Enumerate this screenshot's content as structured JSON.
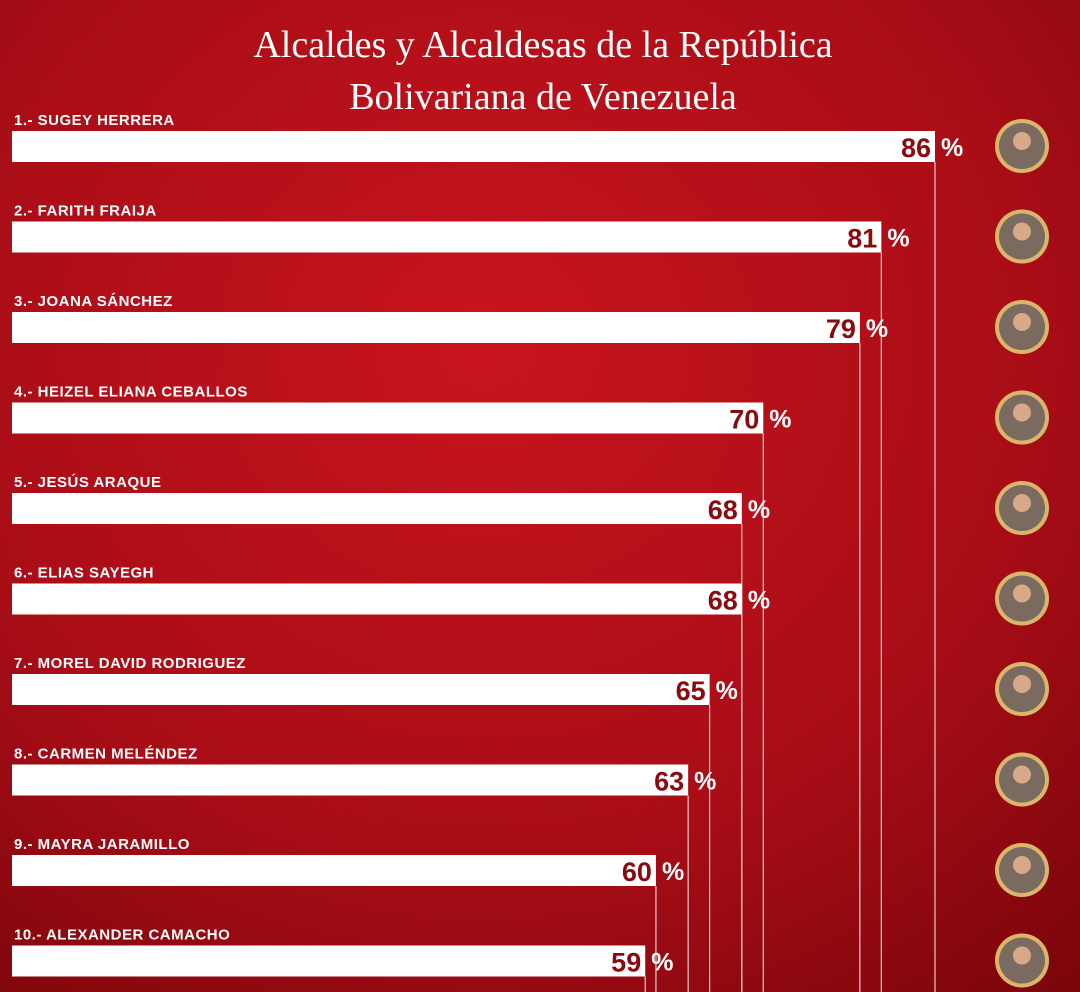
{
  "chart_data": {
    "type": "bar",
    "orientation": "horizontal",
    "title_lines": [
      "Alcaldes y Alcaldesas de la República",
      "Bolivariana de Venezuela"
    ],
    "categories": [
      "1.- SUGEY HERRERA",
      "2.- FARITH FRAIJA",
      "3.- JOANA SÁNCHEZ",
      "4.- HEIZEL ELIANA CEBALLOS",
      "5.- JESÚS ARAQUE",
      "6.- ELIAS SAYEGH",
      "7.- MOREL DAVID RODRIGUEZ",
      "8.- CARMEN MELÉNDEZ",
      "9.- MAYRA JARAMILLO",
      "10.- ALEXANDER CAMACHO"
    ],
    "values": [
      86,
      81,
      79,
      70,
      68,
      68,
      65,
      63,
      60,
      59
    ],
    "unit_label": "%",
    "color": "#ffffff",
    "label_color": "#8b0a10"
  }
}
